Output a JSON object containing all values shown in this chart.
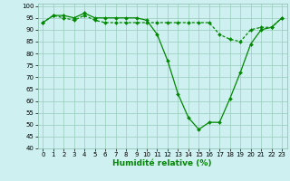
{
  "xlabel": "Humidité relative (%)",
  "background_color": "#cff0f0",
  "grid_color": "#99ccbb",
  "line_color": "#008800",
  "xlim": [
    -0.5,
    23.5
  ],
  "ylim": [
    40,
    101
  ],
  "yticks": [
    40,
    45,
    50,
    55,
    60,
    65,
    70,
    75,
    80,
    85,
    90,
    95,
    100
  ],
  "xticks": [
    0,
    1,
    2,
    3,
    4,
    5,
    6,
    7,
    8,
    9,
    10,
    11,
    12,
    13,
    14,
    15,
    16,
    17,
    18,
    19,
    20,
    21,
    22,
    23
  ],
  "series1_x": [
    0,
    1,
    2,
    3,
    4,
    5,
    6,
    7,
    8,
    9,
    10,
    11,
    12,
    13,
    14,
    15,
    16,
    17,
    18,
    19,
    20,
    21,
    22,
    23
  ],
  "series1_y": [
    93,
    96,
    96,
    95,
    97,
    95,
    95,
    95,
    95,
    95,
    94,
    88,
    77,
    63,
    53,
    48,
    51,
    51,
    61,
    72,
    84,
    90,
    91,
    95
  ],
  "series2_x": [
    0,
    1,
    2,
    3,
    4,
    5,
    6,
    7,
    8,
    9,
    10,
    11,
    12,
    13,
    14,
    15,
    16,
    17,
    18,
    19,
    20,
    21,
    22,
    23
  ],
  "series2_y": [
    93,
    96,
    95,
    94,
    96,
    94,
    93,
    93,
    93,
    93,
    93,
    93,
    93,
    93,
    93,
    93,
    93,
    88,
    86,
    85,
    90,
    91,
    91,
    95
  ],
  "xlabel_fontsize": 6.5,
  "tick_fontsize": 5.0
}
